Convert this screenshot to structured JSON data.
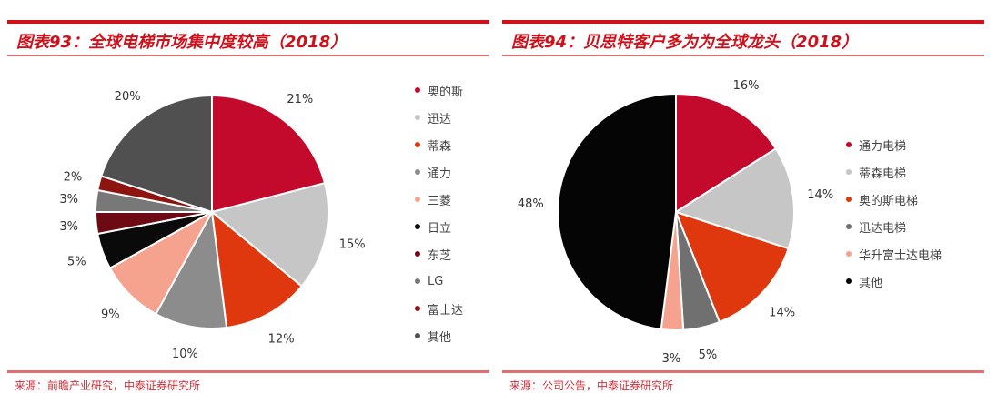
{
  "chart_data": [
    {
      "type": "pie",
      "title": "图表93：全球电梯市场集中度较高（2018）",
      "source": "来源：前瞻产业研究，中泰证券研究所",
      "categories": [
        "奥的斯",
        "迅达",
        "蒂森",
        "通力",
        "三菱",
        "日立",
        "东芝",
        "LG",
        "富士达",
        "其他"
      ],
      "values": [
        21,
        15,
        12,
        10,
        9,
        5,
        3,
        3,
        2,
        20
      ],
      "labels": [
        "21%",
        "15%",
        "12%",
        "10%",
        "9%",
        "5%",
        "3%",
        "3%",
        "2%",
        "20%"
      ],
      "colors": [
        "#c40a2c",
        "#c6c6c6",
        "#e0380e",
        "#8c8c8c",
        "#f5a28f",
        "#0a0a0a",
        "#6e0a14",
        "#787878",
        "#8e1410",
        "#505050"
      ],
      "legend": "right"
    },
    {
      "type": "pie",
      "title": "图表94：贝思特客户多为为全球龙头（2018）",
      "source": "来源：公司公告，中泰证券研究所",
      "categories": [
        "通力电梯",
        "蒂森电梯",
        "奥的斯电梯",
        "迅达电梯",
        "华升富士达电梯",
        "其他"
      ],
      "values": [
        16,
        14,
        14,
        5,
        3,
        48
      ],
      "labels": [
        "16%",
        "14%",
        "14%",
        "5%",
        "3%",
        "48%"
      ],
      "colors": [
        "#c40a2c",
        "#c6c6c6",
        "#e0380e",
        "#707070",
        "#f5a28f",
        "#050505"
      ],
      "legend": "right"
    }
  ]
}
